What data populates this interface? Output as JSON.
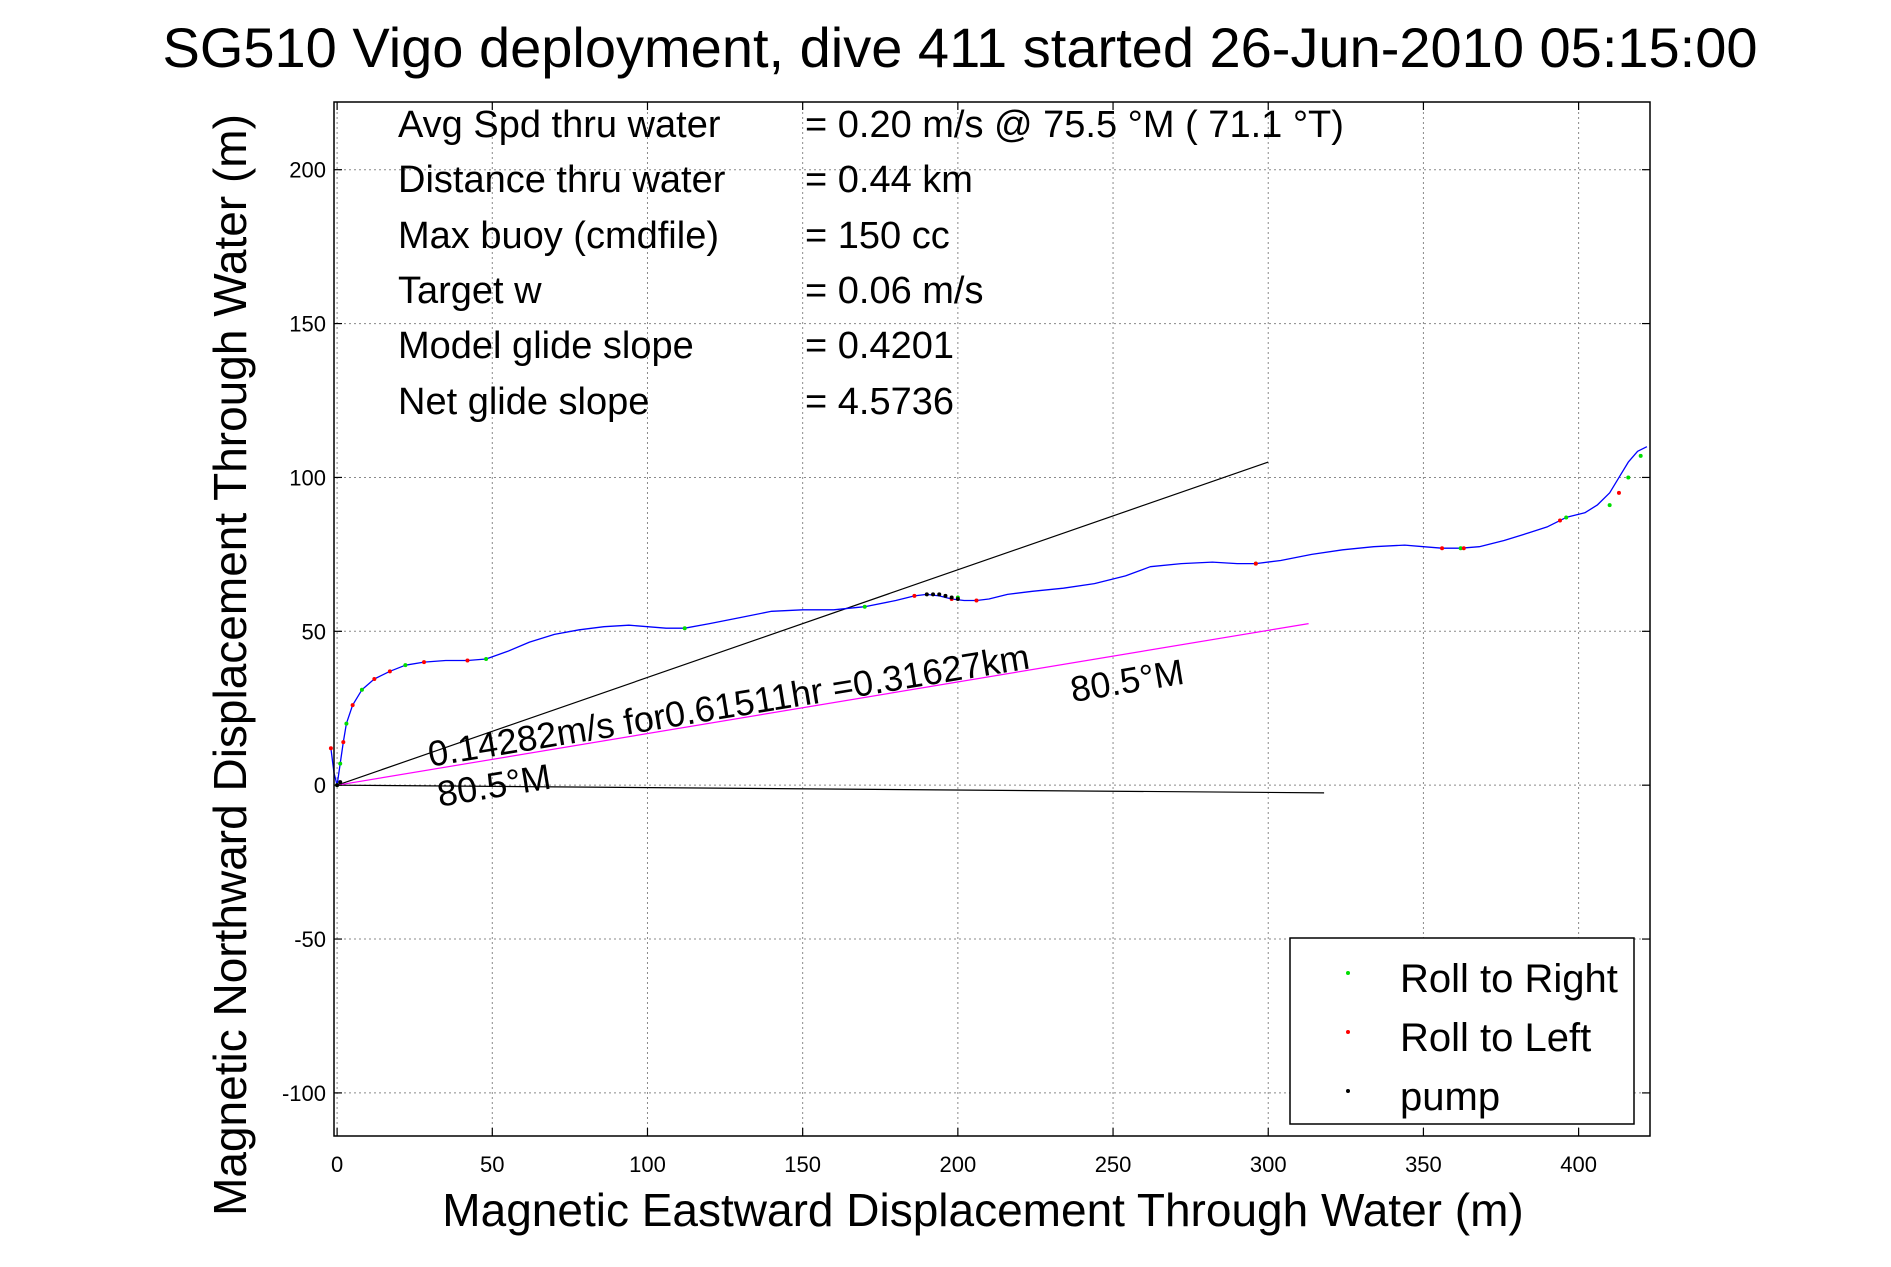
{
  "chart_data": {
    "type": "line",
    "title": "SG510 Vigo deployment, dive 411 started 26-Jun-2010 05:15:00",
    "xlabel": "Magnetic Eastward Displacement Through Water (m)",
    "ylabel": "Magnetic Northward Displacement Through Water (m)",
    "xlim": [
      -1,
      423
    ],
    "ylim": [
      -114,
      222
    ],
    "xticks": [
      0,
      50,
      100,
      150,
      200,
      250,
      300,
      350,
      400
    ],
    "yticks": [
      -100,
      -50,
      0,
      50,
      100,
      150,
      200
    ],
    "grid": true,
    "stats": [
      {
        "label": "Avg Spd thru water",
        "value": "=  0.20 m/s @  75.5 °M ( 71.1 °T)"
      },
      {
        "label": "Distance thru water",
        "value": "=  0.44 km"
      },
      {
        "label": "Max buoy (cmdfile)",
        "value": "= 150 cc"
      },
      {
        "label": "Target w",
        "value": "= 0.06 m/s"
      },
      {
        "label": "Model glide slope",
        "value": "= 0.4201"
      },
      {
        "label": "Net glide slope",
        "value": "= 4.5736"
      }
    ],
    "annotations": [
      {
        "text": "0.14282m/s for0.61511hr =0.31627km",
        "x": 30,
        "y": 6,
        "angle_deg": 9.3
      },
      {
        "text": "80.5°M",
        "x": 33,
        "y": -7,
        "angle_deg": 9.3
      },
      {
        "text": "80.5°M",
        "x": 237,
        "y": 27,
        "angle_deg": 9.3
      }
    ],
    "series": [
      {
        "name": "track",
        "color": "#0000ff",
        "x": [
          -2,
          -1,
          0,
          1,
          2,
          3,
          5,
          8,
          12,
          17,
          22,
          28,
          35,
          42,
          48,
          55,
          62,
          70,
          78,
          86,
          94,
          100,
          106,
          112,
          120,
          130,
          140,
          150,
          160,
          170,
          180,
          186,
          190,
          194,
          198,
          202,
          206,
          210,
          216,
          224,
          234,
          244,
          254,
          262,
          272,
          282,
          290,
          296,
          304,
          314,
          324,
          334,
          344,
          350,
          356,
          362,
          368,
          376,
          384,
          390,
          396,
          402,
          406,
          410,
          413,
          416,
          419,
          422
        ],
        "y": [
          12,
          4,
          0,
          7,
          14,
          20,
          26,
          31,
          34.5,
          37,
          39,
          40,
          40.5,
          40.5,
          41,
          43.5,
          46.5,
          49,
          50.5,
          51.5,
          52,
          51.5,
          51,
          51,
          52.5,
          54.5,
          56.5,
          57,
          57,
          58,
          60,
          61.5,
          62,
          61.5,
          60.5,
          60,
          60,
          60.5,
          62,
          63,
          64,
          65.5,
          68,
          71,
          72,
          72.5,
          72,
          72,
          73,
          75,
          76.5,
          77.5,
          78,
          77.5,
          77,
          77,
          77.5,
          79.5,
          82,
          84,
          87,
          88.5,
          91,
          95,
          100,
          105,
          108.5,
          110
        ]
      },
      {
        "name": "Roll to Right",
        "color": "#00dd00",
        "x": [
          0,
          1,
          3,
          8,
          22,
          48,
          112,
          170,
          200,
          296,
          362,
          396,
          410,
          416,
          420
        ],
        "y": [
          0,
          7,
          20,
          31,
          39,
          41,
          51,
          58,
          61,
          72,
          77,
          87,
          91,
          100,
          107
        ]
      },
      {
        "name": "Roll to Left",
        "color": "#ff0000",
        "x": [
          -2,
          2,
          5,
          12,
          17,
          28,
          42,
          186,
          198,
          206,
          296,
          356,
          363,
          394,
          413
        ],
        "y": [
          12,
          14,
          26,
          34.5,
          37,
          40,
          40.5,
          61.5,
          60.5,
          60,
          72,
          77,
          77,
          86,
          95
        ]
      },
      {
        "name": "pump",
        "color": "#000000",
        "x": [
          0,
          1,
          190,
          192,
          194,
          196,
          198,
          200
        ],
        "y": [
          0,
          1,
          62,
          62,
          62,
          61.5,
          61,
          60.5
        ]
      }
    ],
    "lines": [
      {
        "color": "#000000",
        "x": [
          0,
          300
        ],
        "y": [
          0,
          105
        ]
      },
      {
        "color": "#000000",
        "x": [
          0,
          318
        ],
        "y": [
          0,
          -2.5
        ]
      },
      {
        "color": "#ff00ff",
        "x": [
          0,
          313
        ],
        "y": [
          0,
          52.5
        ]
      }
    ],
    "legend": {
      "position": "bottom-right",
      "entries": [
        {
          "label": "Roll to Right",
          "color": "#00dd00"
        },
        {
          "label": "Roll to Left",
          "color": "#ff0000"
        },
        {
          "label": "pump",
          "color": "#000000"
        }
      ]
    }
  }
}
